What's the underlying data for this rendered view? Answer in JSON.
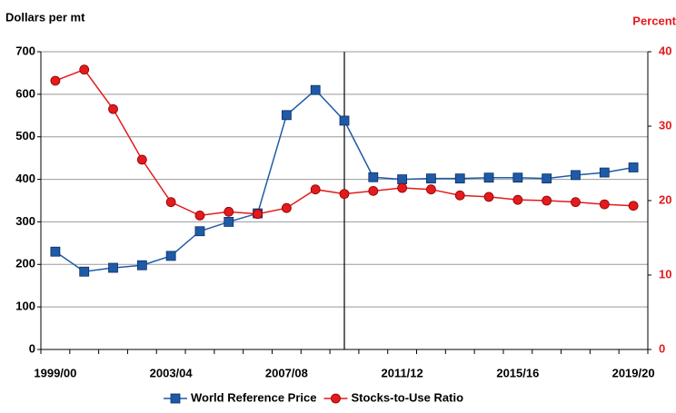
{
  "chart_data": {
    "type": "line",
    "y_label": "Dollars per mt",
    "y2_label": "Percent",
    "categories": [
      "1999/00",
      null,
      null,
      null,
      "2003/04",
      null,
      null,
      null,
      "2007/08",
      null,
      null,
      null,
      "2011/12",
      null,
      null,
      null,
      "2015/16",
      null,
      null,
      null,
      "2019/20"
    ],
    "series": [
      {
        "name": "World Reference Price",
        "color": "#1f5aa6",
        "marker": "square",
        "values": [
          230,
          183,
          192,
          198,
          220,
          278,
          300,
          320,
          551,
          610,
          538,
          405,
          400,
          402,
          402,
          404,
          404,
          402,
          410,
          416,
          428
        ]
      },
      {
        "name": "Stocks-to-Use Ratio",
        "color": "#e41a1c",
        "marker": "circle",
        "axis": "y2",
        "values": [
          36.1,
          37.6,
          32.3,
          25.5,
          19.8,
          18.0,
          18.5,
          18.2,
          19.0,
          21.5,
          20.9,
          21.3,
          21.7,
          21.5,
          20.7,
          20.5,
          20.1,
          20.0,
          19.8,
          19.5,
          19.3
        ]
      }
    ],
    "ylim": [
      0,
      700
    ],
    "yticks": [
      0,
      100,
      200,
      300,
      400,
      500,
      600,
      700
    ],
    "y2lim": [
      0,
      40
    ],
    "y2ticks": [
      0,
      10,
      20,
      30,
      40
    ],
    "y2_color": "#e41a1c",
    "grid": true,
    "legend": "bottom"
  }
}
